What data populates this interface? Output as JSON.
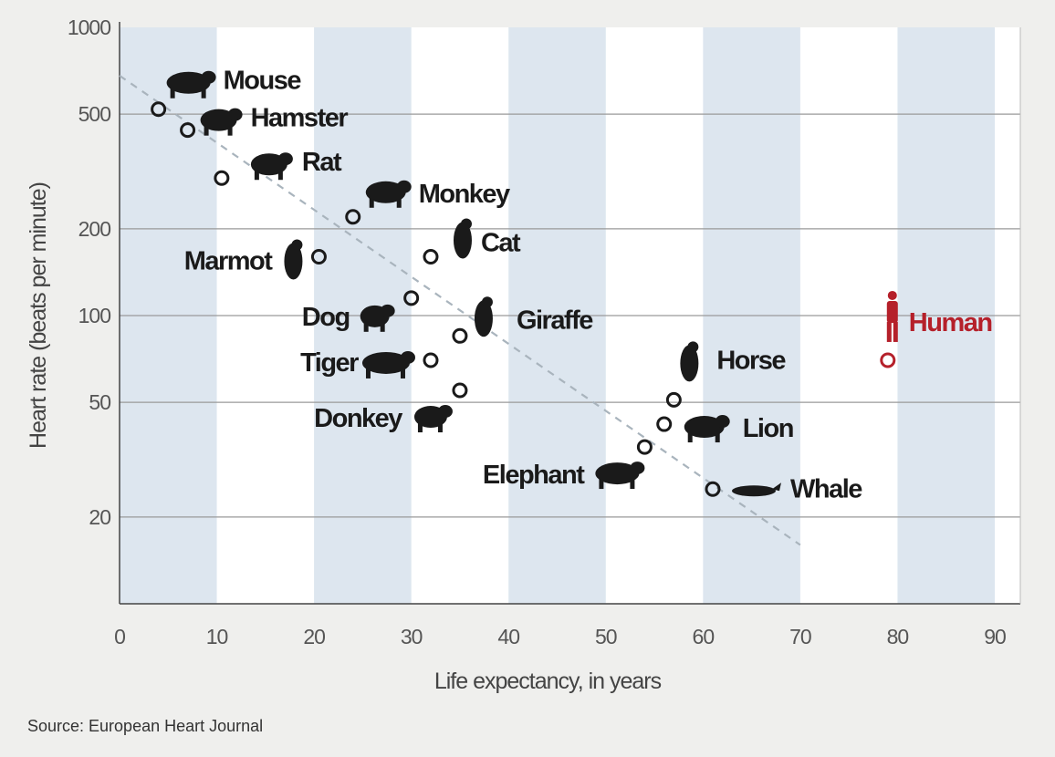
{
  "chart_data": {
    "type": "scatter",
    "title": "",
    "xlabel": "Life expectancy, in years",
    "ylabel": "Heart rate (beats per minute)",
    "xlim": [
      0,
      90
    ],
    "ylim": [
      10,
      1000
    ],
    "y_scale": "log",
    "x_ticks": [
      0,
      10,
      20,
      30,
      40,
      50,
      60,
      70,
      80,
      90
    ],
    "y_ticks": [
      20,
      50,
      100,
      200,
      500,
      1000
    ],
    "grid": "horizontal lines at y ticks; alternating light-blue vertical bands every 10 years",
    "band_color": "#dde6ef",
    "point_color": "#1a1a1a",
    "highlight_color": "#b5202a",
    "points": [
      {
        "name": "Mouse",
        "x": 4,
        "y": 520,
        "icon": "mouse-icon"
      },
      {
        "name": "Hamster",
        "x": 7,
        "y": 440,
        "icon": "hamster-icon"
      },
      {
        "name": "Rat",
        "x": 10.5,
        "y": 300,
        "icon": "rat-icon"
      },
      {
        "name": "Monkey",
        "x": 24,
        "y": 220,
        "icon": "monkey-icon"
      },
      {
        "name": "Marmot",
        "x": 20.5,
        "y": 160,
        "icon": "marmot-icon"
      },
      {
        "name": "Cat",
        "x": 32,
        "y": 160,
        "icon": "cat-icon"
      },
      {
        "name": "Dog",
        "x": 30,
        "y": 115,
        "icon": "dog-icon"
      },
      {
        "name": "Giraffe",
        "x": 35,
        "y": 85,
        "icon": "giraffe-icon"
      },
      {
        "name": "Tiger",
        "x": 32,
        "y": 70,
        "icon": "tiger-icon"
      },
      {
        "name": "Donkey",
        "x": 35,
        "y": 55,
        "icon": "donkey-icon"
      },
      {
        "name": "Horse",
        "x": 57,
        "y": 51,
        "icon": "horse-icon"
      },
      {
        "name": "Lion",
        "x": 56,
        "y": 42,
        "icon": "lion-icon"
      },
      {
        "name": "Elephant",
        "x": 54,
        "y": 35,
        "icon": "elephant-icon"
      },
      {
        "name": "Whale",
        "x": 61,
        "y": 25,
        "icon": "whale-icon"
      },
      {
        "name": "Human",
        "x": 79,
        "y": 70,
        "icon": "human-icon",
        "highlight": true
      }
    ],
    "trendline": {
      "style": "dashed",
      "from": {
        "x": 0,
        "y": 680
      },
      "to": {
        "x": 70,
        "y": 16
      }
    }
  },
  "source": "Source: European Heart Journal"
}
